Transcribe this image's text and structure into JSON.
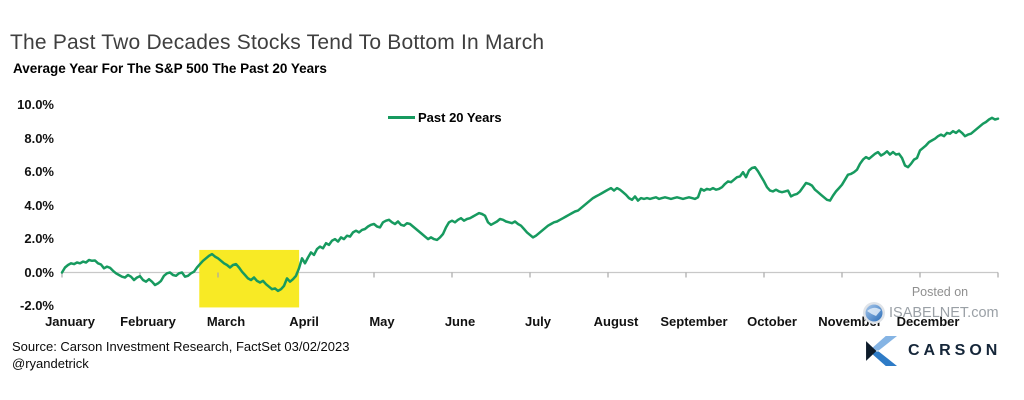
{
  "title": "The Past Two Decades Stocks Tend To Bottom In March",
  "subtitle": "Average Year For The S&P 500 The Past 20 Years",
  "legend": {
    "label": "Past 20 Years"
  },
  "source": {
    "line1": "Source: Carson Investment Research, FactSet 03/02/2023",
    "line2": "@ryandetrick"
  },
  "watermark": {
    "posted_on": "Posted on",
    "site": "ISABELNET.com"
  },
  "branding": {
    "name": "CARSON"
  },
  "colors": {
    "line_green": "#179a5f",
    "highlight_yellow": "#f8ea25",
    "axis_gray": "#c8c8c8",
    "tick_gray": "#a8a8a8",
    "title_gray": "#3f3f3f",
    "watermark_gray": "#9aa0a6",
    "brand_navy": "#152639",
    "brand_blue_light": "#85b4e4",
    "brand_blue_mid": "#2e7bc6"
  },
  "chart_data": {
    "type": "line",
    "title": "Average Year For The S&P 500 The Past 20 Years",
    "xlabel": "",
    "ylabel": "",
    "unit": "%",
    "grid": "0%-baseline-only",
    "legend_position": "top-center",
    "x_axis": {
      "categories": [
        "January",
        "February",
        "March",
        "April",
        "May",
        "June",
        "July",
        "August",
        "September",
        "October",
        "November",
        "December"
      ]
    },
    "y_axis": {
      "tick_labels": [
        "10.0%",
        "8.0%",
        "6.0%",
        "4.0%",
        "2.0%",
        "0.0%",
        "-2.0%"
      ],
      "tick_values": [
        10,
        8,
        6,
        4,
        2,
        0,
        -2
      ],
      "range": [
        -2.0,
        10.0
      ]
    },
    "highlight_box": {
      "description": "yellow box marking the March bottom zone",
      "x_month_range": [
        1.76,
        3.04
      ],
      "y_value_range": [
        -2.09,
        1.35
      ],
      "color": "#f8ea25"
    },
    "series": [
      {
        "name": "Past 20 Years",
        "color": "#179a5f",
        "x_start_month": 0,
        "x_end_month": 12,
        "values": [
          0.0,
          0.3,
          0.45,
          0.55,
          0.5,
          0.6,
          0.55,
          0.65,
          0.6,
          0.75,
          0.7,
          0.72,
          0.55,
          0.48,
          0.25,
          0.35,
          0.28,
          0.1,
          -0.05,
          -0.15,
          -0.25,
          -0.3,
          -0.15,
          -0.25,
          -0.45,
          -0.3,
          -0.22,
          -0.45,
          -0.55,
          -0.4,
          -0.55,
          -0.75,
          -0.65,
          -0.5,
          -0.2,
          -0.05,
          0.0,
          -0.15,
          -0.2,
          -0.05,
          0.0,
          -0.25,
          -0.2,
          -0.05,
          0.05,
          0.3,
          0.5,
          0.7,
          0.85,
          1.0,
          1.1,
          0.95,
          0.85,
          0.7,
          0.55,
          0.45,
          0.3,
          0.45,
          0.5,
          0.3,
          0.05,
          -0.15,
          -0.35,
          -0.45,
          -0.3,
          -0.5,
          -0.6,
          -0.5,
          -0.7,
          -0.85,
          -1.0,
          -0.95,
          -1.1,
          -1.0,
          -0.8,
          -0.35,
          -0.55,
          -0.4,
          -0.2,
          0.25,
          0.85,
          0.55,
          0.9,
          1.2,
          1.05,
          1.4,
          1.55,
          1.45,
          1.75,
          1.65,
          1.9,
          2.0,
          1.85,
          2.1,
          2.0,
          2.2,
          2.15,
          2.4,
          2.5,
          2.4,
          2.55,
          2.6,
          2.75,
          2.85,
          2.9,
          2.75,
          2.7,
          3.0,
          3.1,
          3.15,
          3.0,
          2.9,
          3.05,
          2.85,
          2.8,
          2.95,
          2.9,
          2.75,
          2.6,
          2.45,
          2.3,
          2.15,
          2.0,
          2.1,
          2.0,
          1.95,
          2.1,
          2.3,
          2.7,
          3.0,
          3.1,
          3.0,
          3.15,
          3.25,
          3.1,
          3.2,
          3.25,
          3.35,
          3.45,
          3.55,
          3.5,
          3.4,
          3.0,
          2.85,
          2.95,
          3.05,
          3.2,
          3.15,
          3.05,
          3.0,
          2.95,
          3.05,
          2.9,
          2.8,
          2.6,
          2.4,
          2.25,
          2.1,
          2.2,
          2.35,
          2.5,
          2.65,
          2.8,
          2.9,
          3.0,
          3.05,
          3.15,
          3.25,
          3.35,
          3.45,
          3.55,
          3.65,
          3.7,
          3.85,
          4.0,
          4.15,
          4.3,
          4.45,
          4.55,
          4.65,
          4.75,
          4.85,
          4.95,
          5.05,
          4.9,
          5.05,
          4.95,
          4.8,
          4.65,
          4.45,
          4.35,
          4.55,
          4.3,
          4.45,
          4.4,
          4.45,
          4.4,
          4.45,
          4.5,
          4.4,
          4.45,
          4.5,
          4.45,
          4.4,
          4.45,
          4.5,
          4.45,
          4.4,
          4.45,
          4.5,
          4.45,
          4.4,
          4.5,
          5.0,
          4.9,
          5.0,
          4.95,
          5.05,
          4.95,
          5.0,
          5.1,
          5.3,
          5.45,
          5.4,
          5.55,
          5.7,
          5.75,
          6.0,
          5.7,
          6.1,
          6.25,
          6.3,
          6.05,
          5.75,
          5.45,
          5.1,
          4.9,
          4.85,
          4.95,
          4.85,
          4.8,
          4.85,
          4.9,
          4.55,
          4.65,
          4.7,
          4.85,
          5.1,
          5.35,
          5.3,
          5.2,
          4.95,
          4.8,
          4.65,
          4.5,
          4.35,
          4.3,
          4.6,
          4.85,
          5.05,
          5.25,
          5.55,
          5.85,
          5.9,
          6.0,
          6.15,
          6.5,
          6.75,
          6.9,
          6.8,
          6.95,
          7.1,
          7.2,
          7.0,
          7.1,
          7.25,
          7.05,
          7.2,
          7.05,
          7.1,
          6.85,
          6.4,
          6.3,
          6.5,
          6.75,
          6.85,
          7.3,
          7.45,
          7.6,
          7.8,
          7.9,
          8.0,
          8.15,
          8.25,
          8.15,
          8.35,
          8.3,
          8.45,
          8.35,
          8.5,
          8.35,
          8.15,
          8.25,
          8.3,
          8.45,
          8.6,
          8.75,
          8.9,
          9.0,
          9.15,
          9.25,
          9.15,
          9.2
        ]
      }
    ]
  }
}
